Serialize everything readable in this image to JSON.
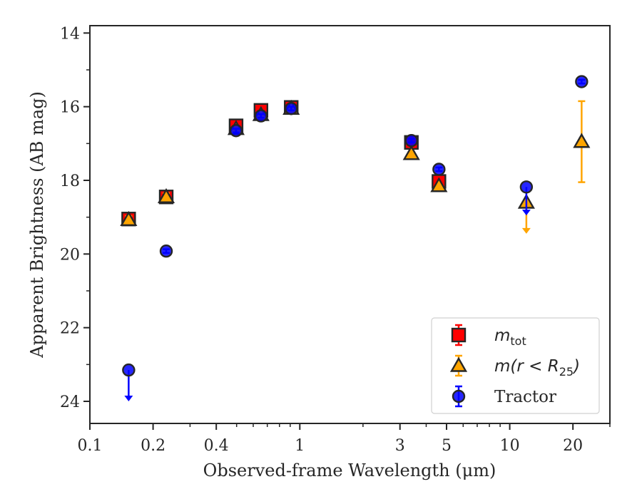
{
  "chart_data": {
    "type": "scatter",
    "title": "",
    "xlabel": "Observed-frame Wavelength (μm)",
    "ylabel": "Apparent Brightness (AB mag)",
    "xscale": "log",
    "xlim": [
      0.1,
      30
    ],
    "ylim": [
      24.6,
      13.8
    ],
    "y_inverted": true,
    "grid": false,
    "legend_position": "lower-right",
    "x_ticks": [
      {
        "value": 0.1,
        "label": "0.1"
      },
      {
        "value": 0.2,
        "label": "0.2"
      },
      {
        "value": 0.4,
        "label": "0.4"
      },
      {
        "value": 1,
        "label": "1"
      },
      {
        "value": 3,
        "label": "3"
      },
      {
        "value": 5,
        "label": "5"
      },
      {
        "value": 10,
        "label": "10"
      },
      {
        "value": 20,
        "label": "20"
      }
    ],
    "y_ticks": [
      14,
      16,
      18,
      20,
      22,
      24
    ],
    "series": [
      {
        "key": "mtot",
        "name": "m_tot",
        "legend_main": "m",
        "legend_sub": "tot",
        "marker": "square",
        "color": "#ff0000",
        "edge": "#262626",
        "points": [
          {
            "x": 0.153,
            "y": 19.05,
            "err": 0.12
          },
          {
            "x": 0.231,
            "y": 18.45,
            "err": 0.12
          },
          {
            "x": 0.497,
            "y": 16.52,
            "err": 0.1
          },
          {
            "x": 0.653,
            "y": 16.1,
            "err": 0.1
          },
          {
            "x": 0.91,
            "y": 16.02,
            "err": 0.1
          },
          {
            "x": 3.4,
            "y": 16.97,
            "err": 0.08
          },
          {
            "x": 4.6,
            "y": 18.03,
            "err": 0.1
          }
        ]
      },
      {
        "key": "mr25",
        "name": "m(r < R25)",
        "legend_main": "m(r < R",
        "legend_sub": "25",
        "legend_close": ")",
        "marker": "triangle",
        "color": "#ffa500",
        "edge": "#262626",
        "points": [
          {
            "x": 0.153,
            "y": 19.07,
            "err": 0.1
          },
          {
            "x": 0.231,
            "y": 18.45,
            "err": 0.1
          },
          {
            "x": 0.497,
            "y": 16.6,
            "err": 0.08
          },
          {
            "x": 0.653,
            "y": 16.22,
            "err": 0.08
          },
          {
            "x": 0.91,
            "y": 16.05,
            "err": 0.08
          },
          {
            "x": 3.4,
            "y": 17.28,
            "err": 0.05
          },
          {
            "x": 4.6,
            "y": 18.15,
            "err": 0.05
          },
          {
            "x": 12.0,
            "y": 18.6,
            "err": 0.0,
            "upper_limit_to": 19.45
          },
          {
            "x": 22.0,
            "y": 16.95,
            "err": 1.1
          }
        ]
      },
      {
        "key": "tractor",
        "name": "Tractor",
        "legend_main": "Tractor",
        "marker": "circle",
        "color": "#0000ff",
        "edge": "#262626",
        "points": [
          {
            "x": 0.153,
            "y": 23.15,
            "err": 0.0,
            "upper_limit_to": 24.0
          },
          {
            "x": 0.231,
            "y": 19.92,
            "err": 0.05
          },
          {
            "x": 0.497,
            "y": 16.65,
            "err": 0.05
          },
          {
            "x": 0.653,
            "y": 16.25,
            "err": 0.05
          },
          {
            "x": 0.91,
            "y": 16.05,
            "err": 0.05
          },
          {
            "x": 3.4,
            "y": 16.92,
            "err": 0.05
          },
          {
            "x": 4.6,
            "y": 17.7,
            "err": 0.05
          },
          {
            "x": 12.0,
            "y": 18.18,
            "err": 0.0,
            "upper_limit_to": 18.95
          },
          {
            "x": 22.0,
            "y": 15.32,
            "err": 0.05
          }
        ]
      }
    ]
  }
}
